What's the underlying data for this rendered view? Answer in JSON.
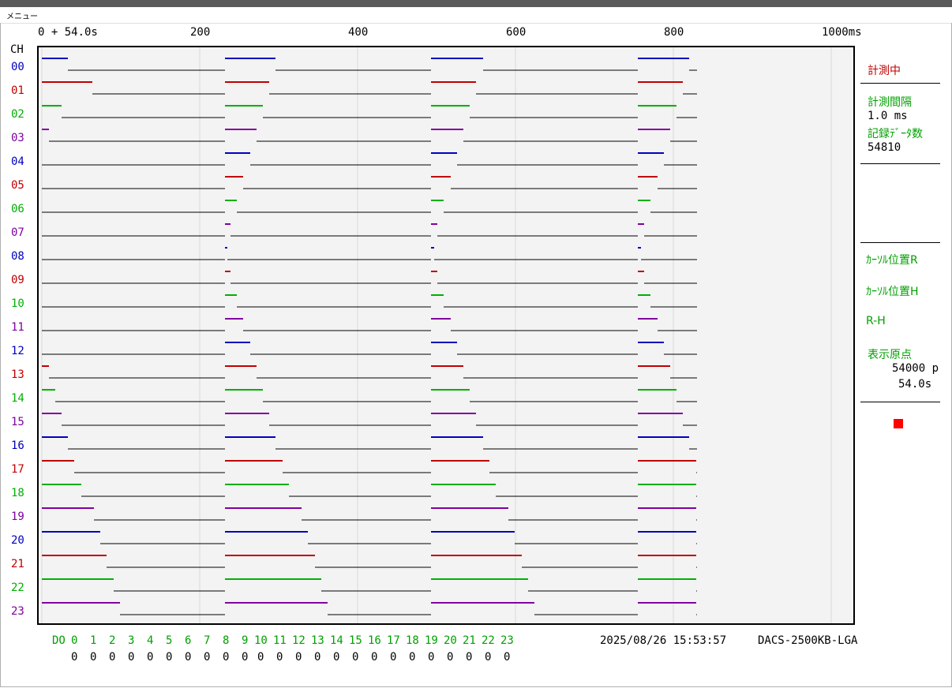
{
  "menu": {
    "label": "メニュー"
  },
  "x_axis": {
    "origin_label": "0 + 54.0s",
    "ticks": [
      {
        "value": 200,
        "label": "200"
      },
      {
        "value": 400,
        "label": "400"
      },
      {
        "value": 600,
        "label": "600"
      },
      {
        "value": 800,
        "label": "800"
      },
      {
        "value": 1000,
        "label": "1000ms"
      }
    ]
  },
  "ch_header": "CH",
  "channels": [
    {
      "label": "00",
      "color": "#0000c0"
    },
    {
      "label": "01",
      "color": "#c00000"
    },
    {
      "label": "02",
      "color": "#00b000"
    },
    {
      "label": "03",
      "color": "#8000a0"
    },
    {
      "label": "04",
      "color": "#0000c0"
    },
    {
      "label": "05",
      "color": "#c00000"
    },
    {
      "label": "06",
      "color": "#00b000"
    },
    {
      "label": "07",
      "color": "#8000a0"
    },
    {
      "label": "08",
      "color": "#0000c0"
    },
    {
      "label": "09",
      "color": "#c00000"
    },
    {
      "label": "10",
      "color": "#00b000"
    },
    {
      "label": "11",
      "color": "#8000a0"
    },
    {
      "label": "12",
      "color": "#0000c0"
    },
    {
      "label": "13",
      "color": "#c00000"
    },
    {
      "label": "14",
      "color": "#00b000"
    },
    {
      "label": "15",
      "color": "#8000a0"
    },
    {
      "label": "16",
      "color": "#0000c0"
    },
    {
      "label": "17",
      "color": "#c00000"
    },
    {
      "label": "18",
      "color": "#00b000"
    },
    {
      "label": "19",
      "color": "#8000a0"
    },
    {
      "label": "20",
      "color": "#0000c0"
    },
    {
      "label": "21",
      "color": "#c00000"
    },
    {
      "label": "22",
      "color": "#00b000"
    },
    {
      "label": "23",
      "color": "#8000a0"
    }
  ],
  "waveform": {
    "cycle_starts_ms": [
      0,
      232,
      493,
      755
    ],
    "end_ms": 830,
    "high_ms": [
      33,
      64,
      25,
      9,
      0,
      0,
      0,
      0,
      0,
      0,
      0,
      0,
      0,
      9,
      17,
      25,
      33,
      41,
      50,
      66,
      74,
      82,
      91,
      99
    ],
    "high_ms_per_cycle": [
      [
        33,
        64,
        25,
        9,
        0,
        0,
        0,
        0,
        0,
        0,
        0,
        0,
        0,
        9,
        17,
        25,
        33,
        41,
        50,
        66,
        74,
        82,
        91,
        99
      ],
      [
        64,
        56,
        48,
        40,
        32,
        23,
        15,
        7,
        3,
        7,
        15,
        23,
        32,
        40,
        48,
        56,
        64,
        73,
        81,
        97,
        105,
        114,
        122,
        130
      ],
      [
        66,
        57,
        49,
        41,
        33,
        25,
        16,
        8,
        4,
        8,
        16,
        25,
        33,
        41,
        49,
        57,
        66,
        74,
        82,
        98,
        106,
        115,
        123,
        131
      ],
      [
        65,
        57,
        49,
        41,
        33,
        25,
        16,
        8,
        4,
        8,
        16,
        25,
        33,
        41,
        49,
        57,
        65,
        74,
        74,
        74,
        74,
        74,
        74,
        74
      ]
    ]
  },
  "panel": {
    "status": "計測中",
    "interval_label": "計測間隔",
    "interval_value": "1.0 ms",
    "count_label": "記録ﾃﾞｰﾀ数",
    "count_value": "54810",
    "cursor_r_label": "ｶｰｿﾙ位置R",
    "cursor_h_label": "ｶｰｿﾙ位置H",
    "rh_label": "R-H",
    "origin_label": "表示原点",
    "origin_points": "54000 p",
    "origin_seconds": "54.0s"
  },
  "do": {
    "label": "DO",
    "channels": [
      "0",
      "1",
      "2",
      "3",
      "4",
      "5",
      "6",
      "7",
      "8",
      "9",
      "10",
      "11",
      "12",
      "13",
      "14",
      "15",
      "16",
      "17",
      "18",
      "19",
      "20",
      "21",
      "22",
      "23"
    ],
    "values": [
      "0",
      "0",
      "0",
      "0",
      "0",
      "0",
      "0",
      "0",
      "0",
      "0",
      "0",
      "0",
      "0",
      "0",
      "0",
      "0",
      "0",
      "0",
      "0",
      "0",
      "0",
      "0",
      "0",
      "0"
    ]
  },
  "datetime": "2025/08/26 15:53:57",
  "model": "DACS-2500KB-LGA"
}
